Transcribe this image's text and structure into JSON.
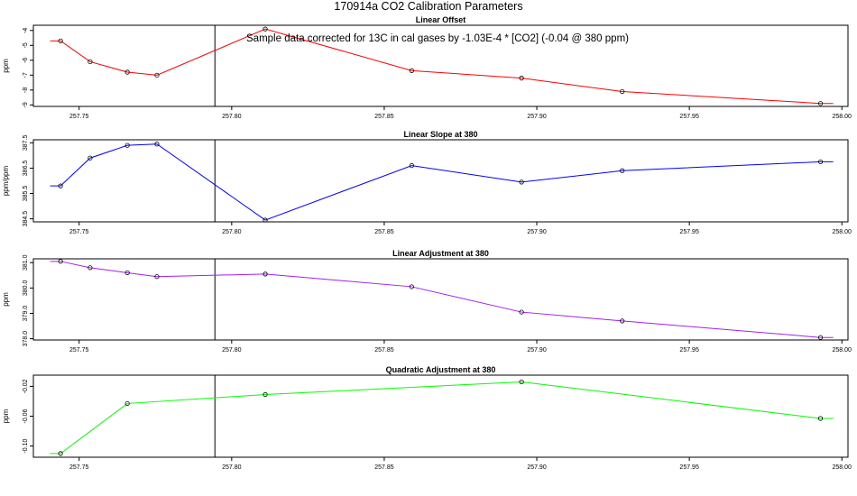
{
  "page_title": "170914a   CO2 Calibration Parameters",
  "marker_x": 257.7945,
  "chart_data": [
    {
      "type": "line",
      "title": "Linear Offset",
      "ylabel": "ppm",
      "color": "#ff0000",
      "annotation": "Sample data corrected for 13C in cal gases by -1.03E-4 * [CO2] (-0.04 @ 380 ppm)",
      "xlim": [
        257.735,
        258.002
      ],
      "xticks": [
        "257.75",
        "257.80",
        "257.85",
        "257.90",
        "257.95",
        "258.00"
      ],
      "ylim": [
        -9.1,
        -3.65
      ],
      "yticks": [
        -9,
        -8,
        -7,
        -6,
        -5,
        -4
      ],
      "ytick_labels": [
        "-9",
        "-8",
        "-7",
        "-6",
        "-5",
        "-4"
      ],
      "line_start_x": 257.7405,
      "line_end_x": 257.7945,
      "points": [
        {
          "x": 257.7439,
          "y": -4.7
        },
        {
          "x": 257.7536,
          "y": -6.1
        },
        {
          "x": 257.7658,
          "y": -6.8
        },
        {
          "x": 257.7755,
          "y": -7.0
        },
        {
          "x": 257.811,
          "y": -3.9
        },
        {
          "x": 257.859,
          "y": -6.7
        },
        {
          "x": 257.895,
          "y": -7.2
        },
        {
          "x": 257.928,
          "y": -8.1
        },
        {
          "x": 257.993,
          "y": -8.9
        }
      ]
    },
    {
      "type": "line",
      "title": "Linear Slope at 380",
      "ylabel": "ppm/ppm",
      "color": "#0000ff",
      "xlim": [
        257.735,
        258.002
      ],
      "xticks": [
        "257.75",
        "257.80",
        "257.85",
        "257.90",
        "257.95",
        "258.00"
      ],
      "ylim": [
        384.38,
        387.62
      ],
      "yticks": [
        384.5,
        385.5,
        386.5,
        387.5
      ],
      "ytick_labels": [
        "384.5",
        "385.5",
        "386.5",
        "387.5"
      ],
      "line_start_x": 257.7405,
      "line_end_x": 257.7945,
      "points": [
        {
          "x": 257.7439,
          "y": 385.8
        },
        {
          "x": 257.7536,
          "y": 386.9
        },
        {
          "x": 257.7658,
          "y": 387.4
        },
        {
          "x": 257.7755,
          "y": 387.45
        },
        {
          "x": 257.811,
          "y": 384.45
        },
        {
          "x": 257.859,
          "y": 386.6
        },
        {
          "x": 257.895,
          "y": 385.95
        },
        {
          "x": 257.928,
          "y": 386.4
        },
        {
          "x": 257.993,
          "y": 386.75
        }
      ]
    },
    {
      "type": "line",
      "title": "Linear Adjustment at 380",
      "ylabel": "ppm",
      "color": "#a020f0",
      "xlim": [
        257.735,
        258.002
      ],
      "xticks": [
        "257.75",
        "257.80",
        "257.85",
        "257.90",
        "257.95",
        "258.00"
      ],
      "ylim": [
        377.95,
        381.15
      ],
      "yticks": [
        378,
        379,
        380,
        381
      ],
      "ytick_labels": [
        "378.0",
        "379.0",
        "380.0",
        "381.0"
      ],
      "line_start_x": 257.7405,
      "line_end_x": 257.7945,
      "points": [
        {
          "x": 257.7439,
          "y": 381.05
        },
        {
          "x": 257.7536,
          "y": 380.8
        },
        {
          "x": 257.7658,
          "y": 380.6
        },
        {
          "x": 257.7755,
          "y": 380.45
        },
        {
          "x": 257.811,
          "y": 380.55
        },
        {
          "x": 257.859,
          "y": 380.05
        },
        {
          "x": 257.895,
          "y": 379.05
        },
        {
          "x": 257.928,
          "y": 378.7
        },
        {
          "x": 257.993,
          "y": 378.05
        }
      ]
    },
    {
      "type": "line",
      "title": "Quadratic Adjustment at 380",
      "ylabel": "ppm",
      "color": "#00ff00",
      "xlim": [
        257.735,
        258.002
      ],
      "xticks": [
        "257.75",
        "257.80",
        "257.85",
        "257.90",
        "257.95",
        "258.00"
      ],
      "ylim": [
        -0.115,
        -0.005
      ],
      "yticks": [
        -0.1,
        -0.06,
        -0.02
      ],
      "ytick_labels": [
        "-0.10",
        "-0.06",
        "-0.02"
      ],
      "line_start_x": 257.7405,
      "line_end_x": 257.7945,
      "points": [
        {
          "x": 257.7439,
          "y": -0.11
        },
        {
          "x": 257.7658,
          "y": -0.043
        },
        {
          "x": 257.811,
          "y": -0.031
        },
        {
          "x": 257.895,
          "y": -0.014
        },
        {
          "x": 257.993,
          "y": -0.063
        }
      ]
    }
  ]
}
